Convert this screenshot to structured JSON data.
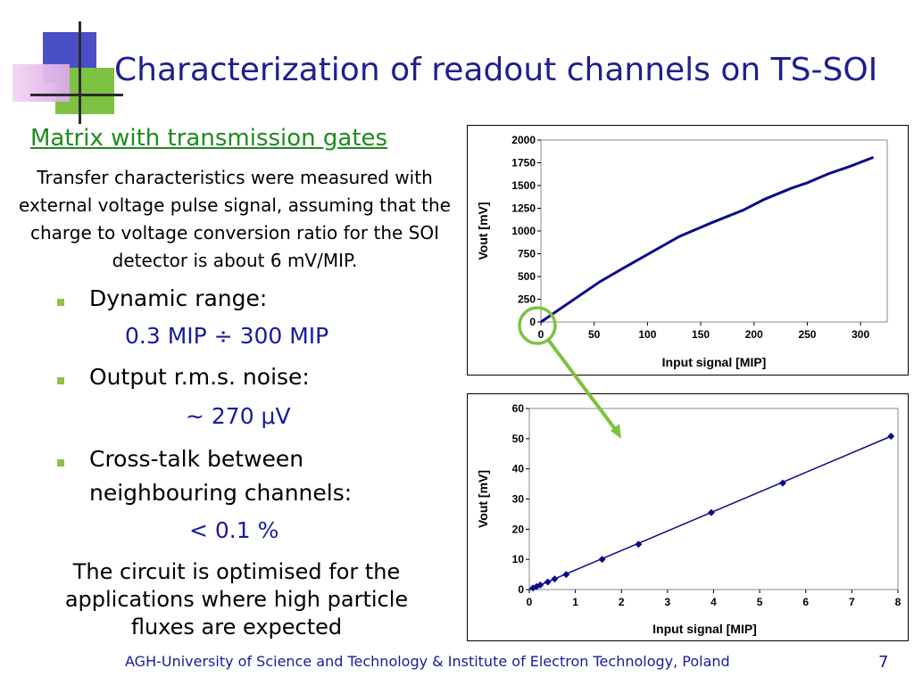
{
  "slide": {
    "title": "Characterization of readout channels on TS-SOI",
    "subtitle": "Matrix with transmission gates",
    "intro": "Transfer characteristics were measured with external voltage pulse signal, assuming that the charge to voltage conversion ratio for the SOI detector is about 6 mV/MIP.",
    "bullets": [
      {
        "label": "Dynamic range:",
        "value": "0.3 MIP ÷ 300 MIP"
      },
      {
        "label": "Output r.m.s. noise:",
        "value": "~ 270 μV"
      },
      {
        "label": "Cross-talk between neighbouring channels:",
        "value": "< 0.1 %"
      }
    ],
    "conclusion": "The circuit is optimised for the applications where high particle fluxes are expected",
    "footer": "AGH-University of Science and Technology & Institute of Electron Technology, Poland",
    "page_number": "7"
  },
  "colors": {
    "title": "#1f1f8f",
    "subtitle": "#1e8b1e",
    "value_text": "#1a1a9e",
    "series": "#0a0a8a",
    "zoom_marker": "#7dc242"
  },
  "chart_data": [
    {
      "type": "line",
      "xlabel": "Input signal [MIP]",
      "ylabel": "Vout  [mV]",
      "xlim": [
        0,
        325
      ],
      "ylim": [
        0,
        2000
      ],
      "xticks": [
        0,
        50,
        100,
        150,
        200,
        250,
        300
      ],
      "yticks": [
        0,
        250,
        500,
        750,
        1000,
        1250,
        1500,
        1750,
        2000
      ],
      "grid": false,
      "markers": false,
      "series": [
        {
          "x": [
            0,
            15,
            35,
            55,
            80,
            105,
            130,
            160,
            190,
            210,
            235,
            250,
            270,
            290,
            312
          ],
          "y": [
            0,
            120,
            280,
            440,
            610,
            775,
            940,
            1090,
            1230,
            1350,
            1470,
            1530,
            1630,
            1710,
            1810
          ]
        }
      ]
    },
    {
      "type": "scatter",
      "xlabel": "Input signal [MIP]",
      "ylabel": "Vout   [mV]",
      "xlim": [
        0,
        8
      ],
      "ylim": [
        0,
        60
      ],
      "xticks": [
        0,
        1,
        2,
        3,
        4,
        5,
        6,
        7,
        8
      ],
      "yticks": [
        0,
        10,
        20,
        30,
        40,
        50,
        60
      ],
      "grid": false,
      "series": [
        {
          "x": [
            0.08,
            0.16,
            0.24,
            0.4,
            0.55,
            0.8,
            1.58,
            2.37,
            3.95,
            5.5,
            7.85
          ],
          "y": [
            0.5,
            1,
            1.5,
            2.5,
            3.5,
            5,
            10,
            15,
            25.5,
            35.3,
            50.8
          ]
        }
      ],
      "trendline": {
        "from": [
          0,
          0
        ],
        "to": [
          7.85,
          50.8
        ]
      }
    }
  ]
}
